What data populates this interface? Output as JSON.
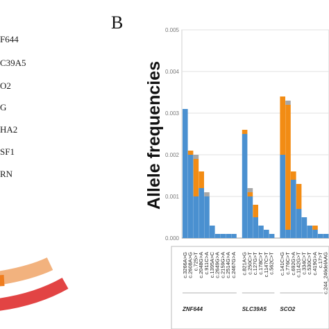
{
  "panel_label": "B",
  "left_gene_labels": [
    "F644",
    "C39A5",
    "O2",
    "G",
    "HA2",
    "SF1",
    "RN"
  ],
  "colors": {
    "blue": "#4a90d0",
    "orange": "#f28c14",
    "gray": "#a7a7a7",
    "arc_peach": "#f2b27e",
    "arc_red": "#e24444",
    "arc_orange": "#ef7d1f"
  },
  "chart_data": {
    "type": "bar",
    "stacked": true,
    "ylabel": "Allele frequencies",
    "ylim": [
      0,
      0.005
    ],
    "yticks": [
      "0.000",
      "0.001",
      "0.002",
      "0.003",
      "0.004",
      "0.005"
    ],
    "grid": true,
    "categories": [
      "c.3266A>G",
      "c.2608A>G",
      "c.725>T",
      "c.2048G>A",
      "c.911C>A",
      "c.1395A>C",
      "c.2649G>A",
      "c.2159G>A",
      "c.2514G>A",
      "c.2467G>A",
      "",
      "c.821A>G",
      "c.250C>T",
      "c.127G>T",
      "c.178C>T",
      "c.1147C>T",
      "c.562C>T",
      "",
      "c.141C>G",
      "c.776C>T",
      "c.692G>A",
      "c.1142G>T",
      "c.334C>T",
      "c.530C>T",
      "c.419G>A",
      "c.17>T",
      "c.244_246delAAG"
    ],
    "series": [
      {
        "color_key": "blue",
        "values": [
          0.0031,
          0.002,
          0.001,
          0.0012,
          0.001,
          0.0003,
          0.0001,
          0.0001,
          0.0001,
          0.0001,
          0,
          0.0025,
          0.001,
          0.0005,
          0.0003,
          0.0002,
          0.0001,
          0,
          0.002,
          0.0002,
          0.0014,
          0.0007,
          0.0005,
          0.0003,
          0.0002,
          0.0001,
          0.0001
        ]
      },
      {
        "color_key": "orange",
        "values": [
          0,
          0.0001,
          0.0009,
          0.0004,
          0,
          0,
          0,
          0,
          0,
          0,
          0,
          0.0001,
          0.0001,
          0.0003,
          0,
          0,
          0,
          0,
          0.0014,
          0.003,
          0.0002,
          0.0006,
          0,
          0,
          0.0001,
          0,
          0
        ]
      },
      {
        "color_key": "gray",
        "values": [
          0,
          0,
          0.0001,
          0,
          0.0001,
          0,
          0,
          0,
          0,
          0,
          0,
          0,
          0.0001,
          0,
          0,
          0,
          0,
          0,
          0,
          0.0001,
          0,
          0,
          0,
          0,
          0,
          0,
          0
        ]
      }
    ],
    "gene_groups": [
      {
        "label": "ZNF644",
        "first": 0,
        "last": 9
      },
      {
        "label": "SLC39A5",
        "first": 11,
        "last": 16
      },
      {
        "label": "SCO2",
        "first": 18,
        "last": 25
      }
    ]
  }
}
